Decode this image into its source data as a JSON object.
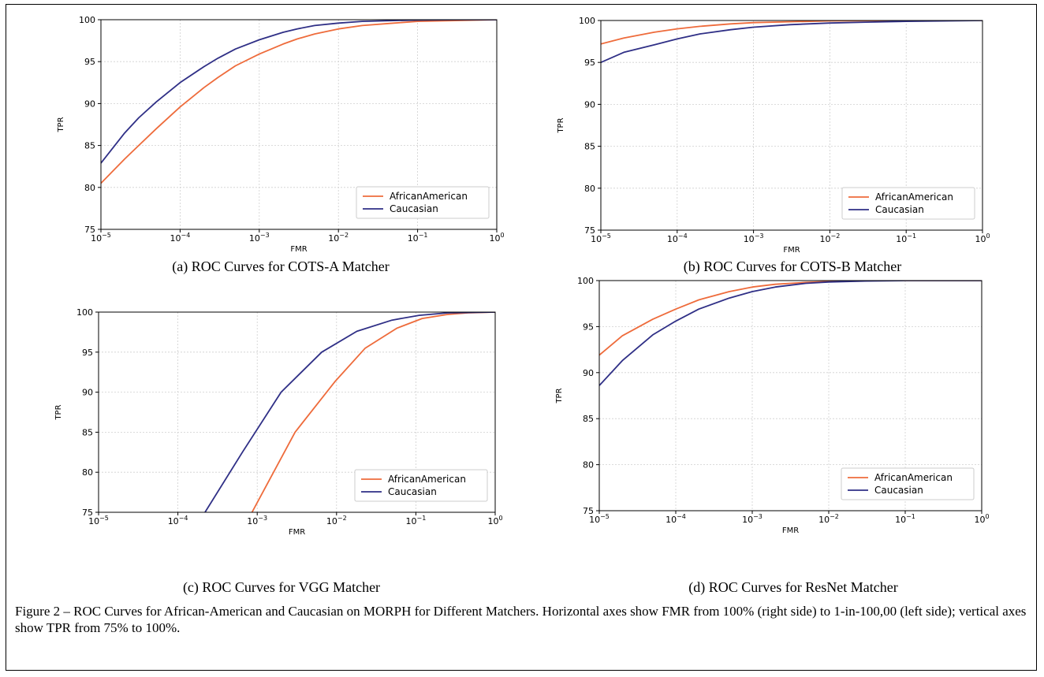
{
  "figure_caption": "Figure 2 – ROC Curves for African-American and Caucasian on MORPH for Different Matchers.  Horizontal axes show FMR from 100% (right side) to 1-in-100,00 (left side); vertical axes show TPR from 75% to 100%.",
  "colors": {
    "AfricanAmerican": "#ee6b3b",
    "Caucasian": "#2f2f86"
  },
  "chart_data": [
    {
      "type": "line",
      "caption": "(a)    ROC Curves for COTS-A Matcher",
      "xlabel": "FMR",
      "ylabel": "TPR",
      "xscale": "log",
      "xlim": [
        1e-05,
        1
      ],
      "ylim": [
        75,
        100
      ],
      "xticks": [
        1e-05,
        0.0001,
        0.001,
        0.01,
        0.1,
        1
      ],
      "xtick_labels": [
        [
          "10",
          "−5"
        ],
        [
          "10",
          "−4"
        ],
        [
          "10",
          "−3"
        ],
        [
          "10",
          "−2"
        ],
        [
          "10",
          "−1"
        ],
        [
          "10",
          "0"
        ]
      ],
      "yticks": [
        "75",
        "80",
        "85",
        "90",
        "95",
        "100"
      ],
      "grid": true,
      "legend": "lower-right",
      "series": [
        {
          "name": "AfricanAmerican",
          "x": [
            1e-05,
            2e-05,
            3e-05,
            5e-05,
            0.0001,
            0.0002,
            0.0003,
            0.0005,
            0.001,
            0.002,
            0.003,
            0.005,
            0.01,
            0.02,
            0.05,
            0.1,
            0.3,
            1
          ],
          "y": [
            80.5,
            83.4,
            85.0,
            87.0,
            89.6,
            91.9,
            93.1,
            94.5,
            95.9,
            97.1,
            97.7,
            98.3,
            98.9,
            99.3,
            99.6,
            99.8,
            99.9,
            100
          ]
        },
        {
          "name": "Caucasian",
          "x": [
            1e-05,
            2e-05,
            3e-05,
            5e-05,
            0.0001,
            0.0002,
            0.0003,
            0.0005,
            0.001,
            0.002,
            0.003,
            0.005,
            0.01,
            0.02,
            0.05,
            0.1,
            0.3,
            1
          ],
          "y": [
            82.9,
            86.5,
            88.3,
            90.2,
            92.5,
            94.4,
            95.4,
            96.5,
            97.6,
            98.5,
            98.9,
            99.3,
            99.6,
            99.8,
            99.9,
            99.95,
            100,
            100
          ]
        }
      ]
    },
    {
      "type": "line",
      "caption": "(b) ROC Curves for COTS-B Matcher",
      "xlabel": "FMR",
      "ylabel": "TPR",
      "xscale": "log",
      "xlim": [
        1e-05,
        1
      ],
      "ylim": [
        75,
        100
      ],
      "xticks": [
        1e-05,
        0.0001,
        0.001,
        0.01,
        0.1,
        1
      ],
      "xtick_labels": [
        [
          "10",
          "−5"
        ],
        [
          "10",
          "−4"
        ],
        [
          "10",
          "−3"
        ],
        [
          "10",
          "−2"
        ],
        [
          "10",
          "−1"
        ],
        [
          "10",
          "0"
        ]
      ],
      "yticks": [
        "75",
        "80",
        "85",
        "90",
        "95",
        "100"
      ],
      "grid": true,
      "legend": "lower-right",
      "series": [
        {
          "name": "AfricanAmerican",
          "x": [
            1e-05,
            2e-05,
            5e-05,
            0.0001,
            0.0002,
            0.0005,
            0.001,
            0.003,
            0.01,
            0.1,
            1
          ],
          "y": [
            97.2,
            97.9,
            98.6,
            99.0,
            99.3,
            99.6,
            99.75,
            99.85,
            99.95,
            100,
            100
          ]
        },
        {
          "name": "Caucasian",
          "x": [
            1e-05,
            2e-05,
            5e-05,
            0.0001,
            0.0002,
            0.0005,
            0.001,
            0.003,
            0.01,
            0.03,
            0.1,
            1
          ],
          "y": [
            95.0,
            96.2,
            97.1,
            97.8,
            98.4,
            98.9,
            99.2,
            99.5,
            99.7,
            99.8,
            99.9,
            100
          ]
        }
      ]
    },
    {
      "type": "line",
      "caption": "(c) ROC Curves for VGG Matcher",
      "xlabel": "FMR",
      "ylabel": "TPR",
      "xscale": "log",
      "xlim": [
        1e-05,
        1
      ],
      "ylim": [
        75,
        100
      ],
      "xticks": [
        1e-05,
        0.0001,
        0.001,
        0.01,
        0.1,
        1
      ],
      "xtick_labels": [
        [
          "10",
          "−5"
        ],
        [
          "10",
          "−4"
        ],
        [
          "10",
          "−3"
        ],
        [
          "10",
          "−2"
        ],
        [
          "10",
          "−1"
        ],
        [
          "10",
          "0"
        ]
      ],
      "yticks": [
        "75",
        "80",
        "85",
        "90",
        "95",
        "100"
      ],
      "grid": true,
      "legend": "lower-right",
      "series": [
        {
          "name": "AfricanAmerican",
          "x": [
            0.00086,
            0.003,
            0.0095,
            0.023,
            0.058,
            0.12,
            0.25,
            0.45,
            1
          ],
          "y": [
            75.0,
            85.0,
            91.3,
            95.5,
            98.0,
            99.2,
            99.7,
            99.9,
            100
          ]
        },
        {
          "name": "Caucasian",
          "x": [
            0.00022,
            0.00065,
            0.002,
            0.0065,
            0.018,
            0.05,
            0.11,
            0.25,
            1
          ],
          "y": [
            75.0,
            82.5,
            90.0,
            95.0,
            97.6,
            99.0,
            99.6,
            99.9,
            100
          ]
        }
      ]
    },
    {
      "type": "line",
      "caption": "(d) ROC Curves for ResNet Matcher",
      "xlabel": "FMR",
      "ylabel": "TPR",
      "xscale": "log",
      "xlim": [
        1e-05,
        1
      ],
      "ylim": [
        75,
        100
      ],
      "xticks": [
        1e-05,
        0.0001,
        0.001,
        0.01,
        0.1,
        1
      ],
      "xtick_labels": [
        [
          "10",
          "−5"
        ],
        [
          "10",
          "−4"
        ],
        [
          "10",
          "−3"
        ],
        [
          "10",
          "−2"
        ],
        [
          "10",
          "−1"
        ],
        [
          "10",
          "0"
        ]
      ],
      "yticks": [
        "75",
        "80",
        "85",
        "90",
        "95",
        "100"
      ],
      "grid": true,
      "legend": "lower-right",
      "series": [
        {
          "name": "AfricanAmerican",
          "x": [
            1e-05,
            2e-05,
            5e-05,
            0.0001,
            0.0002,
            0.0005,
            0.001,
            0.002,
            0.005,
            0.01,
            0.03,
            0.1,
            1
          ],
          "y": [
            91.9,
            94.0,
            95.8,
            96.9,
            97.9,
            98.8,
            99.3,
            99.6,
            99.8,
            99.9,
            100,
            100,
            100
          ]
        },
        {
          "name": "Caucasian",
          "x": [
            1e-05,
            2e-05,
            5e-05,
            0.0001,
            0.0002,
            0.0005,
            0.001,
            0.002,
            0.005,
            0.01,
            0.03,
            0.1,
            1
          ],
          "y": [
            88.6,
            91.3,
            94.1,
            95.6,
            96.9,
            98.1,
            98.8,
            99.3,
            99.7,
            99.85,
            99.95,
            100,
            100
          ]
        }
      ]
    }
  ]
}
